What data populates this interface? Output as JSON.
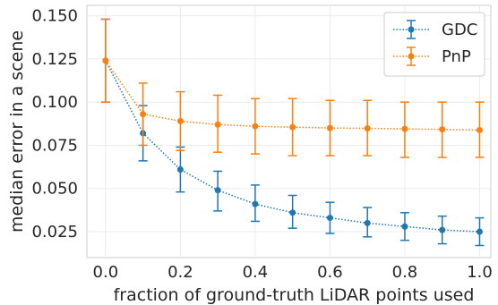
{
  "chart_data": {
    "type": "line",
    "xlabel": "fraction of ground-truth LiDAR points used",
    "ylabel": "median error in a scene",
    "xlim": [
      -0.05,
      1.03
    ],
    "ylim": [
      0.01,
      0.156
    ],
    "xticks": [
      0.0,
      0.2,
      0.4,
      0.6,
      0.8,
      1.0
    ],
    "xtick_labels": [
      "0.0",
      "0.2",
      "0.4",
      "0.6",
      "0.8",
      "1.0"
    ],
    "yticks": [
      0.025,
      0.05,
      0.075,
      0.1,
      0.125,
      0.15
    ],
    "ytick_labels": [
      "0.025",
      "0.050",
      "0.075",
      "0.100",
      "0.125",
      "0.150"
    ],
    "grid": true,
    "legend_position": "top-right",
    "x": [
      0.0,
      0.1,
      0.2,
      0.3,
      0.4,
      0.5,
      0.6,
      0.7,
      0.8,
      0.9,
      1.0
    ],
    "series": [
      {
        "name": "GDC",
        "color": "#1f77b4",
        "values": [
          0.124,
          0.082,
          0.061,
          0.049,
          0.041,
          0.036,
          0.033,
          0.03,
          0.028,
          0.026,
          0.025
        ],
        "err_low": [
          0.1,
          0.066,
          0.048,
          0.037,
          0.031,
          0.027,
          0.024,
          0.022,
          0.02,
          0.018,
          0.017
        ],
        "err_high": [
          0.148,
          0.098,
          0.074,
          0.06,
          0.052,
          0.046,
          0.042,
          0.039,
          0.036,
          0.034,
          0.033
        ]
      },
      {
        "name": "PnP",
        "color": "#ff7f0e",
        "values": [
          0.124,
          0.093,
          0.089,
          0.087,
          0.086,
          0.0855,
          0.085,
          0.0848,
          0.0845,
          0.0842,
          0.0838
        ],
        "err_low": [
          0.1,
          0.075,
          0.072,
          0.071,
          0.07,
          0.069,
          0.069,
          0.069,
          0.068,
          0.068,
          0.068
        ],
        "err_high": [
          0.148,
          0.111,
          0.106,
          0.104,
          0.102,
          0.102,
          0.101,
          0.101,
          0.1,
          0.1,
          0.1
        ]
      }
    ]
  }
}
